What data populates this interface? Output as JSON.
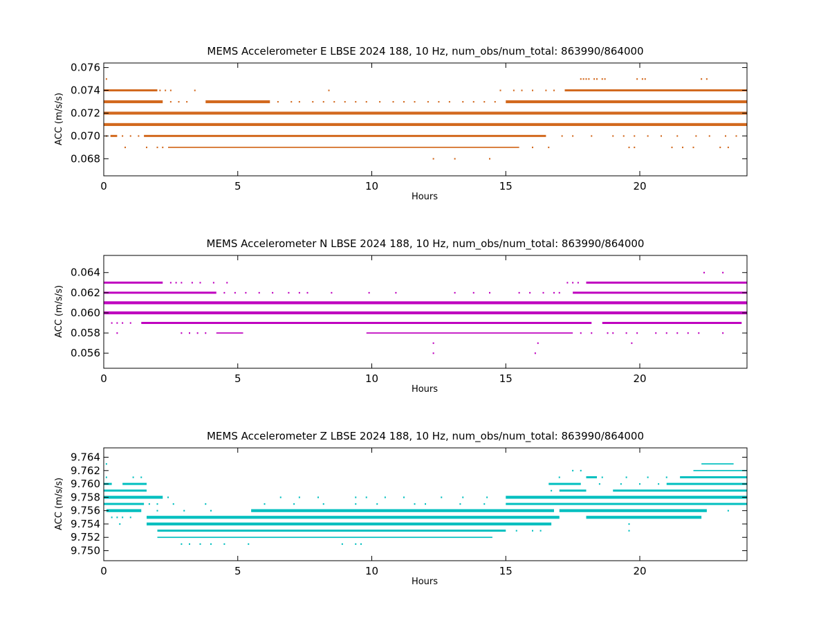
{
  "chart_data": [
    {
      "type": "scatter",
      "title": "MEMS Accelerometer E LBSE 2024 188, 10 Hz, num_obs/num_total: 863990/864000",
      "xlabel": "Hours",
      "ylabel": "ACC (m/s/s)",
      "xlim": [
        0,
        24
      ],
      "ylim": [
        0.0665,
        0.0764
      ],
      "x_ticks": [
        "0",
        "5",
        "10",
        "15",
        "20"
      ],
      "y_ticks": [
        "0.068",
        "0.070",
        "0.072",
        "0.074",
        "0.076"
      ],
      "color": "#d2691e",
      "series": [
        {
          "y": 0.072,
          "segments": [
            [
              0,
              24
            ]
          ],
          "weight": "heavy",
          "points": []
        },
        {
          "y": 0.071,
          "segments": [
            [
              0,
              24
            ]
          ],
          "weight": "heavy",
          "points": []
        },
        {
          "y": 0.073,
          "segments": [
            [
              0,
              2.2
            ],
            [
              3.8,
              6.2
            ],
            [
              15,
              24
            ]
          ],
          "weight": "heavy",
          "points": [
            2.5,
            2.8,
            3.1,
            6.5,
            7.0,
            7.3,
            7.8,
            8.2,
            8.6,
            9.0,
            9.4,
            9.8,
            10.3,
            10.8,
            11.2,
            11.6,
            12.1,
            12.5,
            12.9,
            13.4,
            13.8,
            14.2,
            14.6
          ]
        },
        {
          "y": 0.07,
          "segments": [
            [
              0.25,
              0.5
            ],
            [
              1.5,
              16.5
            ]
          ],
          "weight": "medium",
          "points": [
            0.1,
            0.7,
            1.0,
            1.3,
            17.1,
            17.5,
            18.2,
            19.0,
            19.4,
            19.8,
            20.3,
            20.8,
            21.4,
            22.1,
            22.6,
            23.2,
            23.6
          ]
        },
        {
          "y": 0.074,
          "segments": [
            [
              0,
              2.0
            ],
            [
              17.2,
              24
            ]
          ],
          "weight": "medium",
          "points": [
            2.1,
            2.3,
            2.5,
            3.4,
            8.4,
            14.8,
            15.3,
            15.6,
            16.0,
            16.5,
            16.8
          ]
        },
        {
          "y": 0.069,
          "segments": [
            [
              2.4,
              15.5
            ]
          ],
          "weight": "light",
          "points": [
            0.8,
            1.6,
            2.0,
            2.2,
            16.0,
            16.6,
            19.6,
            19.8,
            21.2,
            21.6,
            22.0,
            23.0,
            23.3
          ]
        },
        {
          "y": 0.075,
          "segments": [],
          "weight": "light",
          "points": [
            0.1,
            17.8,
            17.9,
            18.0,
            18.1,
            18.3,
            18.4,
            18.6,
            18.7,
            19.9,
            20.1,
            20.2,
            22.3,
            22.5
          ]
        },
        {
          "y": 0.068,
          "segments": [],
          "weight": "light",
          "points": [
            12.3,
            13.1,
            14.4
          ]
        }
      ]
    },
    {
      "type": "scatter",
      "title": "MEMS Accelerometer N LBSE 2024 188, 10 Hz, num_obs/num_total: 863990/864000",
      "xlabel": "Hours",
      "ylabel": "ACC (m/s/s)",
      "xlim": [
        0,
        24
      ],
      "ylim": [
        0.0545,
        0.0657
      ],
      "x_ticks": [
        "0",
        "5",
        "10",
        "15",
        "20"
      ],
      "y_ticks": [
        "0.056",
        "0.058",
        "0.060",
        "0.062",
        "0.064"
      ],
      "color": "#bf00bf",
      "series": [
        {
          "y": 0.061,
          "segments": [
            [
              0,
              24
            ]
          ],
          "weight": "heavy",
          "points": []
        },
        {
          "y": 0.06,
          "segments": [
            [
              0,
              24
            ]
          ],
          "weight": "heavy",
          "points": []
        },
        {
          "y": 0.062,
          "segments": [
            [
              0,
              4.2
            ],
            [
              17.5,
              24
            ]
          ],
          "weight": "medium",
          "points": [
            4.5,
            4.9,
            5.3,
            5.8,
            6.3,
            6.9,
            7.3,
            7.6,
            8.5,
            9.9,
            10.9,
            13.1,
            13.8,
            14.4,
            15.5,
            15.9,
            16.4,
            16.8,
            17.0
          ]
        },
        {
          "y": 0.059,
          "segments": [
            [
              1.4,
              18.2
            ],
            [
              18.6,
              23.8
            ]
          ],
          "weight": "medium",
          "points": [
            0.3,
            0.5,
            0.7,
            1.0
          ]
        },
        {
          "y": 0.063,
          "segments": [
            [
              0,
              2.2
            ],
            [
              18.0,
              24
            ]
          ],
          "weight": "medium",
          "points": [
            2.5,
            2.7,
            2.9,
            3.3,
            3.6,
            4.1,
            4.6,
            17.3,
            17.5,
            17.7
          ]
        },
        {
          "y": 0.058,
          "segments": [
            [
              4.2,
              5.2
            ],
            [
              9.8,
              17.5
            ]
          ],
          "weight": "light",
          "points": [
            0.5,
            2.9,
            3.2,
            3.5,
            3.8,
            17.8,
            18.2,
            18.8,
            19.0,
            19.5,
            19.9,
            20.6,
            21.0,
            21.4,
            21.8,
            22.2,
            23.1
          ]
        },
        {
          "y": 0.064,
          "segments": [],
          "weight": "light",
          "points": [
            22.4,
            23.1
          ]
        },
        {
          "y": 0.057,
          "segments": [],
          "weight": "light",
          "points": [
            12.3,
            16.2,
            19.7
          ]
        },
        {
          "y": 0.056,
          "segments": [],
          "weight": "light",
          "points": [
            12.3,
            16.1
          ]
        }
      ]
    },
    {
      "type": "scatter",
      "title": "MEMS Accelerometer Z LBSE 2024 188, 10 Hz, num_obs/num_total: 863990/864000",
      "xlabel": "Hours",
      "ylabel": "ACC (m/s/s)",
      "xlim": [
        0,
        24
      ],
      "ylim": [
        9.7485,
        9.7654
      ],
      "x_ticks": [
        "0",
        "5",
        "10",
        "15",
        "20"
      ],
      "y_ticks": [
        "9.750",
        "9.752",
        "9.754",
        "9.756",
        "9.758",
        "9.760",
        "9.762",
        "9.764"
      ],
      "color": "#00bfbf",
      "series": [
        {
          "y": 9.755,
          "segments": [
            [
              1.6,
              17.0
            ],
            [
              18.0,
              22.3
            ]
          ],
          "weight": "heavy",
          "points": [
            0.3,
            0.5,
            0.7,
            1.0
          ]
        },
        {
          "y": 9.754,
          "segments": [
            [
              1.6,
              16.7
            ]
          ],
          "weight": "heavy",
          "points": [
            0.6,
            19.6
          ]
        },
        {
          "y": 9.756,
          "segments": [
            [
              0.1,
              1.4
            ],
            [
              5.5,
              16.8
            ],
            [
              17.0,
              22.5
            ]
          ],
          "weight": "heavy",
          "points": [
            2.0,
            3.0,
            4.0,
            23.3
          ]
        },
        {
          "y": 9.753,
          "segments": [
            [
              2.0,
              15.0
            ]
          ],
          "weight": "medium",
          "points": [
            15.4,
            16.0,
            16.3,
            19.6
          ]
        },
        {
          "y": 9.757,
          "segments": [
            [
              0,
              1.5
            ],
            [
              15.0,
              24
            ]
          ],
          "weight": "medium",
          "points": [
            1.7,
            2.0,
            2.6,
            3.8,
            6.0,
            7.1,
            8.2,
            9.4,
            10.2,
            11.6,
            12.0,
            13.3,
            14.2
          ]
        },
        {
          "y": 9.758,
          "segments": [
            [
              0,
              2.2
            ],
            [
              15.0,
              24
            ]
          ],
          "weight": "heavy",
          "points": [
            2.4,
            6.6,
            7.3,
            8.0,
            9.4,
            9.8,
            10.5,
            11.2,
            12.6,
            13.4,
            14.3
          ]
        },
        {
          "y": 9.759,
          "segments": [
            [
              0,
              1.6
            ],
            [
              17.0,
              18.0
            ],
            [
              19.0,
              24
            ]
          ],
          "weight": "medium",
          "points": [
            16.7
          ]
        },
        {
          "y": 9.76,
          "segments": [
            [
              0,
              0.3
            ],
            [
              0.7,
              1.6
            ],
            [
              16.6,
              17.8
            ],
            [
              21.0,
              24
            ]
          ],
          "weight": "medium",
          "points": [
            18.5,
            19.3,
            20.0,
            20.7
          ]
        },
        {
          "y": 9.752,
          "segments": [
            [
              2.0,
              14.5
            ]
          ],
          "weight": "light",
          "points": []
        },
        {
          "y": 9.751,
          "segments": [],
          "weight": "light",
          "points": [
            2.9,
            3.2,
            3.6,
            4.0,
            4.5,
            5.4,
            8.9,
            9.4,
            9.6
          ]
        },
        {
          "y": 9.761,
          "segments": [
            [
              18.0,
              18.4
            ],
            [
              21.5,
              24
            ]
          ],
          "weight": "medium",
          "points": [
            0.1,
            1.1,
            1.4,
            17.0,
            18.6,
            19.5,
            20.3,
            21.0
          ]
        },
        {
          "y": 9.762,
          "segments": [
            [
              22.0,
              24
            ]
          ],
          "weight": "light",
          "points": [
            17.5,
            17.8
          ]
        },
        {
          "y": 9.763,
          "segments": [
            [
              22.3,
              23.5
            ]
          ],
          "weight": "light",
          "points": [
            0.1
          ]
        }
      ]
    }
  ]
}
